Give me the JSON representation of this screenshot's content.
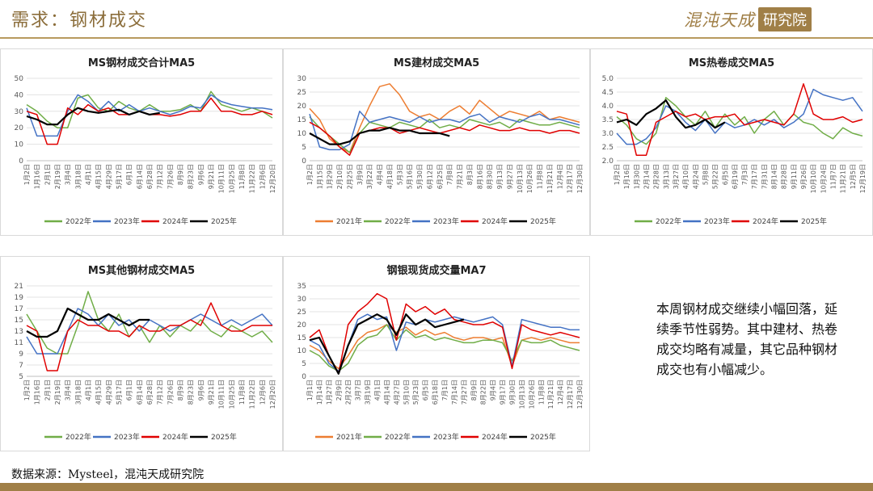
{
  "header": {
    "title": "需求：钢材成交",
    "logo_script": "混沌天成",
    "logo_box": "研究院"
  },
  "note": "本周钢材成交继续小幅回落，延续季节性弱势。其中建材、热卷成交均略有减量，其它品种钢材成交也有小幅减少。",
  "source": "数据来源：Mysteel，混沌天成研究院",
  "colors": {
    "y2021": "#ed7d31",
    "y2022": "#70ad47",
    "y2023": "#4472c4",
    "y2024": "#e00000",
    "y2025": "#000000",
    "accent": "#a07f47"
  },
  "chart_data": [
    {
      "type": "line",
      "title": "MS钢材成交合计MA5",
      "ylim": [
        0,
        50
      ],
      "yticks": [
        0,
        10,
        20,
        30,
        40,
        50
      ],
      "ydecimals": 0,
      "xticks": [
        "1月2日",
        "1月16日",
        "2月1日",
        "2月19日",
        "3月4日",
        "3月18日",
        "4月1日",
        "4月15日",
        "4月29日",
        "5月17日",
        "6月1日",
        "6月14日",
        "6月28日",
        "7月12日",
        "7月26日",
        "8月9日",
        "8月23日",
        "9月6日",
        "9月21日",
        "10月11日",
        "10月25日",
        "11月8日",
        "11月22日",
        "12月6日",
        "12月20日"
      ],
      "series": [
        {
          "name": "2022年",
          "color": "#70ad47",
          "values": [
            34,
            30,
            24,
            20,
            20,
            38,
            40,
            32,
            30,
            36,
            32,
            30,
            34,
            30,
            30,
            31,
            34,
            30,
            42,
            34,
            32,
            30,
            32,
            30,
            26
          ]
        },
        {
          "name": "2023年",
          "color": "#4472c4",
          "values": [
            32,
            15,
            15,
            15,
            30,
            40,
            36,
            30,
            36,
            30,
            34,
            30,
            32,
            30,
            28,
            30,
            33,
            32,
            40,
            36,
            34,
            33,
            32,
            32,
            31
          ]
        },
        {
          "name": "2024年",
          "color": "#e00000",
          "values": [
            30,
            28,
            10,
            10,
            32,
            28,
            34,
            30,
            32,
            28,
            28,
            30,
            28,
            28,
            27,
            28,
            30,
            30,
            38,
            30,
            30,
            28,
            28,
            30,
            28
          ]
        },
        {
          "name": "2025年",
          "color": "#000000",
          "values": [
            27,
            25,
            22,
            22,
            28,
            32,
            30,
            29,
            30,
            31,
            28,
            30,
            28,
            29
          ]
        }
      ]
    },
    {
      "type": "line",
      "title": "MS建材成交MA5",
      "ylim": [
        0,
        30
      ],
      "yticks": [
        0,
        5,
        10,
        15,
        20,
        25,
        30
      ],
      "ydecimals": 0,
      "xticks": [
        "1月2日",
        "1月15日",
        "1月29日",
        "2月10日",
        "2月25日",
        "3月9日",
        "3月22日",
        "4月4日",
        "4月18日",
        "5月3日",
        "5月16日",
        "5月30日",
        "6月12日",
        "6月25日",
        "7月8日",
        "7月21日",
        "8月3日",
        "8月16日",
        "8月30日",
        "9月13日",
        "9月27日",
        "10月13日",
        "10月26日",
        "11月8日",
        "11月21日",
        "12月4日",
        "12月17日",
        "12月30日"
      ],
      "series": [
        {
          "name": "2021年",
          "color": "#ed7d31",
          "values": [
            19,
            15,
            8,
            5,
            3,
            12,
            20,
            27,
            28,
            24,
            18,
            16,
            17,
            15,
            18,
            20,
            17,
            22,
            19,
            16,
            18,
            17,
            16,
            18,
            15,
            16,
            15,
            14
          ]
        },
        {
          "name": "2022年",
          "color": "#70ad47",
          "values": [
            16,
            12,
            9,
            6,
            3,
            10,
            14,
            13,
            12,
            14,
            13,
            12,
            15,
            12,
            13,
            12,
            15,
            14,
            13,
            14,
            12,
            15,
            14,
            13,
            13,
            14,
            13,
            12
          ]
        },
        {
          "name": "2023年",
          "color": "#4472c4",
          "values": [
            17,
            5,
            4,
            4,
            6,
            18,
            14,
            15,
            16,
            15,
            14,
            16,
            14,
            15,
            15,
            14,
            16,
            17,
            14,
            16,
            15,
            14,
            16,
            17,
            15,
            15,
            14,
            13
          ]
        },
        {
          "name": "2024年",
          "color": "#e00000",
          "values": [
            14,
            12,
            9,
            5,
            2,
            10,
            11,
            12,
            12,
            10,
            11,
            12,
            11,
            10,
            11,
            12,
            11,
            13,
            12,
            11,
            11,
            12,
            11,
            11,
            10,
            11,
            11,
            10
          ]
        },
        {
          "name": "2025年",
          "color": "#000000",
          "values": [
            10,
            8,
            6,
            6,
            7,
            10,
            11,
            11,
            12,
            11,
            11,
            10,
            10,
            10,
            9
          ]
        }
      ]
    },
    {
      "type": "line",
      "title": "MS热卷成交MA5",
      "ylim": [
        2,
        5
      ],
      "yticks": [
        2.0,
        2.5,
        3.0,
        3.5,
        4.0,
        4.5,
        5.0
      ],
      "ydecimals": 1,
      "xticks": [
        "1月2日",
        "1月16日",
        "1月30日",
        "2月14日",
        "2月28日",
        "3月13日",
        "3月27日",
        "4月10日",
        "4月24日",
        "5月8日",
        "5月22日",
        "6月5日",
        "6月19日",
        "7月3日",
        "7月17日",
        "7月31日",
        "8月14日",
        "8月28日",
        "9月11日",
        "9月26日",
        "10月10日",
        "10月24日",
        "11月7日",
        "11月21日",
        "12月5日",
        "12月19日"
      ],
      "series": [
        {
          "name": "2022年",
          "color": "#70ad47",
          "values": [
            3.6,
            3.3,
            2.8,
            2.6,
            3.0,
            4.3,
            4.0,
            3.6,
            3.3,
            3.8,
            3.2,
            3.7,
            3.3,
            3.6,
            3.0,
            3.5,
            3.8,
            3.3,
            3.7,
            3.4,
            3.3,
            3.0,
            2.8,
            3.2,
            3.0,
            2.9
          ]
        },
        {
          "name": "2023年",
          "color": "#4472c4",
          "values": [
            3.0,
            2.6,
            2.6,
            2.8,
            3.2,
            4.0,
            3.8,
            3.4,
            3.1,
            3.5,
            3.0,
            3.4,
            3.2,
            3.3,
            3.5,
            3.3,
            3.5,
            3.2,
            3.4,
            3.7,
            4.6,
            4.4,
            4.3,
            4.2,
            4.3,
            3.8
          ]
        },
        {
          "name": "2024年",
          "color": "#e00000",
          "values": [
            3.8,
            3.7,
            2.2,
            2.2,
            3.4,
            3.6,
            3.8,
            3.6,
            3.7,
            3.5,
            3.6,
            3.6,
            3.7,
            3.3,
            3.4,
            3.5,
            3.4,
            3.3,
            3.7,
            4.8,
            3.7,
            3.5,
            3.5,
            3.6,
            3.4,
            3.5
          ]
        },
        {
          "name": "2025年",
          "color": "#000000",
          "values": [
            3.4,
            3.5,
            3.3,
            3.7,
            3.9,
            4.2,
            3.6,
            3.2,
            3.3,
            3.5,
            3.2,
            3.4
          ]
        }
      ]
    },
    {
      "type": "line",
      "title": "MS其他钢材成交MA5",
      "ylim": [
        5,
        21
      ],
      "yticks": [
        5,
        7,
        9,
        11,
        13,
        15,
        17,
        19,
        21
      ],
      "ydecimals": 0,
      "xticks": [
        "1月2日",
        "1月16日",
        "2月1日",
        "2月19日",
        "3月4日",
        "3月18日",
        "4月1日",
        "4月15日",
        "4月29日",
        "5月17日",
        "6月1日",
        "6月14日",
        "6月28日",
        "7月12日",
        "7月26日",
        "8月9日",
        "8月23日",
        "9月6日",
        "9月21日",
        "10月11日",
        "10月25日",
        "11月8日",
        "11月22日",
        "12月6日",
        "12月20日"
      ],
      "series": [
        {
          "name": "2022年",
          "color": "#70ad47",
          "values": [
            16,
            13,
            10,
            9,
            9,
            14,
            20,
            15,
            13,
            16,
            12,
            14,
            11,
            14,
            12,
            14,
            13,
            15,
            13,
            12,
            14,
            13,
            12,
            13,
            11
          ]
        },
        {
          "name": "2023年",
          "color": "#4472c4",
          "values": [
            12,
            9,
            9,
            9,
            13,
            17,
            16,
            14,
            16,
            14,
            15,
            13,
            15,
            14,
            13,
            14,
            15,
            16,
            15,
            14,
            15,
            14,
            15,
            16,
            14
          ]
        },
        {
          "name": "2024年",
          "color": "#e00000",
          "values": [
            14,
            13,
            6,
            6,
            13,
            15,
            14,
            14,
            13,
            13,
            12,
            14,
            13,
            13,
            14,
            14,
            15,
            14,
            18,
            14,
            13,
            13,
            14,
            14,
            14
          ]
        },
        {
          "name": "2025年",
          "color": "#000000",
          "values": [
            13,
            12,
            12,
            13,
            17,
            16,
            15,
            15,
            16,
            15,
            14,
            15,
            15
          ]
        }
      ]
    },
    {
      "type": "line",
      "title": "钢银现货成交量MA7",
      "ylim": [
        0,
        35
      ],
      "yticks": [
        0,
        5,
        10,
        15,
        20,
        25,
        30,
        35
      ],
      "ydecimals": 0,
      "xticks": [
        "1月1日",
        "1月14日",
        "1月27日",
        "2月9日",
        "2月22日",
        "3月7日",
        "3月19日",
        "4月1日",
        "4月14日",
        "4月27日",
        "5月10日",
        "5月23日",
        "6月5日",
        "6月18日",
        "7月1日",
        "7月14日",
        "7月27日",
        "8月9日",
        "8月22日",
        "9月4日",
        "9月17日",
        "9月30日",
        "10月13日",
        "10月26日",
        "11月8日",
        "11月21日",
        "12月4日",
        "12月17日",
        "12月30日"
      ],
      "series": [
        {
          "name": "2021年",
          "color": "#ed7d31",
          "values": [
            12,
            10,
            6,
            3,
            8,
            14,
            17,
            18,
            20,
            17,
            19,
            16,
            18,
            16,
            17,
            15,
            14,
            15,
            15,
            14,
            15,
            4,
            14,
            15,
            14,
            15,
            14,
            13,
            13
          ]
        },
        {
          "name": "2022年",
          "color": "#70ad47",
          "values": [
            10,
            8,
            4,
            2,
            5,
            12,
            15,
            16,
            20,
            14,
            18,
            15,
            16,
            14,
            15,
            14,
            13,
            13,
            14,
            14,
            13,
            6,
            14,
            13,
            13,
            14,
            12,
            11,
            10
          ]
        },
        {
          "name": "2023年",
          "color": "#4472c4",
          "values": [
            14,
            12,
            5,
            2,
            12,
            22,
            24,
            22,
            23,
            10,
            21,
            20,
            22,
            21,
            22,
            23,
            22,
            21,
            22,
            23,
            20,
            4,
            22,
            21,
            20,
            19,
            19,
            18,
            18
          ]
        },
        {
          "name": "2024年",
          "color": "#e00000",
          "values": [
            15,
            18,
            8,
            1,
            20,
            25,
            28,
            32,
            30,
            14,
            28,
            25,
            27,
            24,
            26,
            22,
            21,
            20,
            20,
            21,
            19,
            3,
            20,
            18,
            17,
            16,
            17,
            16,
            15
          ]
        },
        {
          "name": "2025年",
          "color": "#000000",
          "values": [
            14,
            15,
            8,
            1,
            12,
            20,
            22,
            24,
            22,
            16,
            24,
            20,
            22,
            19,
            20,
            21,
            22
          ]
        }
      ]
    }
  ]
}
